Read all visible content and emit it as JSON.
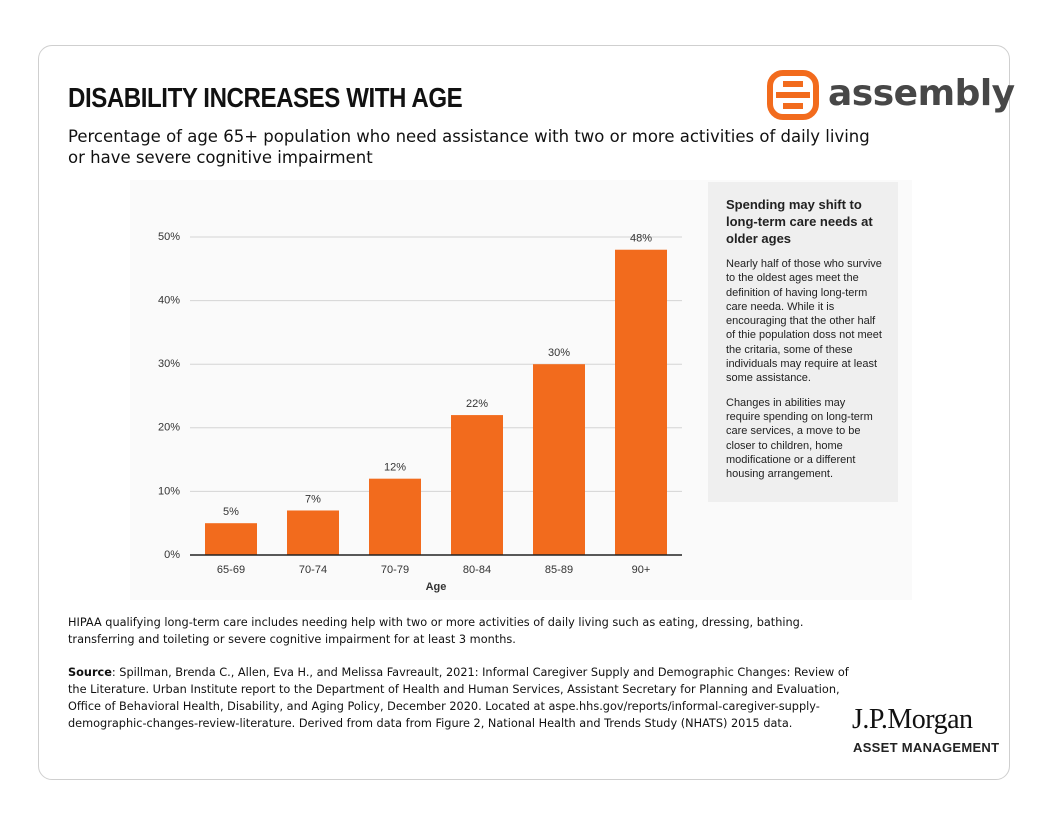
{
  "header": {
    "title": "DISABILITY INCREASES WITH AGE",
    "subtitle": "Percentage of age 65+ population who need assistance with two or more activities of daily living or have severe cognitive impairment",
    "logo": "assembly"
  },
  "chart_data": {
    "type": "bar",
    "categories": [
      "65-69",
      "70-74",
      "70-79",
      "80-84",
      "85-89",
      "90+"
    ],
    "values": [
      5,
      7,
      12,
      22,
      30,
      48
    ],
    "value_labels": [
      "5%",
      "7%",
      "12%",
      "22%",
      "30%",
      "48%"
    ],
    "color": "#f26b1d",
    "xlabel": "Age",
    "ylim": [
      0,
      50
    ],
    "yticks": [
      {
        "value": 0,
        "label": "0%"
      },
      {
        "value": 10,
        "label": "10%"
      },
      {
        "value": 20,
        "label": "20%"
      },
      {
        "value": 30,
        "label": "30%"
      },
      {
        "value": 40,
        "label": "40%"
      },
      {
        "value": 50,
        "label": "50%"
      }
    ],
    "grid": true
  },
  "sidebox": {
    "heading": "Spending may shift to long-term care needs at older ages",
    "paragraphs": [
      "Nearly half of those who survive to the oldest ages meet the definition of having long-term care needa. While it is encouraging that the other half of thie population doss not meet the critaria, some of these individuals may require at least some assistance.",
      "Changes in abilities may require spending on long-term care services, a move to be closer to children, home modificatione or a different housing arrangement."
    ]
  },
  "footnote": "HIPAA qualifying long-term care includes needing help with two or more activities of daily living such as eating, dressing, bathing. transferring and toileting or severe cognitive impairment for at least 3 months.",
  "source": {
    "label": "Source",
    "text": ": Spillman, Brenda C., Allen, Eva H., and Melissa Favreault, 2021: Informal Caregiver Supply and Demographic Changes: Review of the Literature. Urban Institute report to the Department of Health and Human Services, Assistant Secretary for Planning and Evaluation, Office of Behavioral Health, Disability, and Aging Policy, December 2020. Located at aspe.hhs.gov/reports/informal-caregiver-supply-demographic-changes-review-literature. Derived from data from Figure 2, National Health and Trends Study (NHATS) 2015 data."
  },
  "footer_logo": {
    "brand": "J.P.Morgan",
    "division": "ASSET MANAGEMENT"
  }
}
